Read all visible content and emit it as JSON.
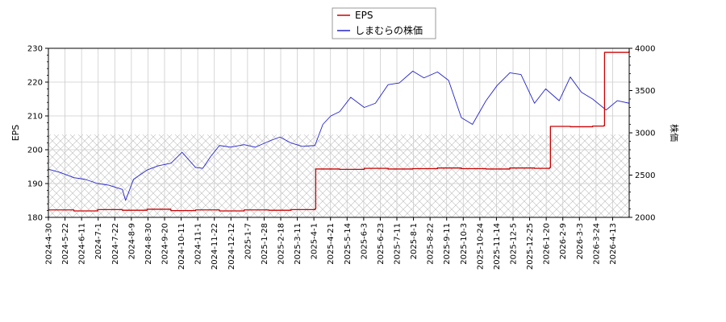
{
  "chart_data": {
    "type": "line",
    "legend": {
      "placement": "top-center",
      "entries": [
        {
          "label": "EPS",
          "color": "#cc0000"
        },
        {
          "label": "しまむらの株価",
          "color": "#2222cc"
        }
      ]
    },
    "y_left": {
      "label": "EPS",
      "lim": [
        180,
        230
      ],
      "ticks": [
        180,
        190,
        200,
        210,
        220,
        230
      ],
      "tick_labels": [
        "180",
        "190",
        "200",
        "210",
        "220",
        "230"
      ]
    },
    "y_right": {
      "label": "株価",
      "lim": [
        2000,
        4000
      ],
      "ticks": [
        2000,
        2500,
        3000,
        3500,
        4000
      ],
      "tick_labels": [
        "2000",
        "2500",
        "3000",
        "3500",
        "4000"
      ]
    },
    "x": {
      "start": "2024-04-30",
      "end": "2026-04-30",
      "tick_labels": [
        "2024-4-30",
        "2024-5-22",
        "2024-6-11",
        "2024-7-1",
        "2024-7-22",
        "2024-8-9",
        "2024-8-30",
        "2024-9-20",
        "2024-10-11",
        "2024-11-1",
        "2024-11-22",
        "2024-12-12",
        "2025-1-7",
        "2025-1-28",
        "2025-2-18",
        "2025-3-11",
        "2025-4-1",
        "2025-4-21",
        "2025-5-14",
        "2025-6-3",
        "2025-6-23",
        "2025-7-11",
        "2025-8-1",
        "2025-8-22",
        "2025-9-11",
        "2025-10-3",
        "2025-10-24",
        "2025-11-14",
        "2025-12-5",
        "2025-12-25",
        "2026-1-20",
        "2026-2-9",
        "2026-3-3",
        "2026-3-24",
        "2026-4-13"
      ]
    },
    "grid": true,
    "hatched_band": {
      "y_axis": "left",
      "from": 180,
      "to": 204.5
    },
    "series": [
      {
        "name": "EPS",
        "axis": "left",
        "color": "#cc0000",
        "x": [
          "2024-04-30",
          "2024-06-01",
          "2024-07-01",
          "2024-08-01",
          "2024-09-01",
          "2024-10-01",
          "2024-11-01",
          "2024-12-01",
          "2025-01-01",
          "2025-02-01",
          "2025-03-01",
          "2025-03-31",
          "2025-04-01",
          "2025-05-01",
          "2025-06-01",
          "2025-07-01",
          "2025-08-01",
          "2025-09-01",
          "2025-10-01",
          "2025-11-01",
          "2025-12-01",
          "2026-01-01",
          "2026-01-20",
          "2026-01-21",
          "2026-02-15",
          "2026-03-15",
          "2026-03-29",
          "2026-03-30",
          "2026-04-30"
        ],
        "values": [
          182.2,
          181.9,
          182.3,
          182.1,
          182.4,
          182.0,
          182.2,
          181.9,
          182.2,
          182.1,
          182.3,
          182.5,
          194.3,
          194.2,
          194.5,
          194.3,
          194.4,
          194.6,
          194.4,
          194.3,
          194.6,
          194.5,
          194.7,
          206.9,
          206.8,
          207.0,
          207.1,
          228.8,
          229.2
        ]
      },
      {
        "name": "しまむらの株価",
        "axis": "right",
        "color": "#2222cc",
        "x": [
          "2024-04-30",
          "2024-05-15",
          "2024-06-01",
          "2024-06-15",
          "2024-07-01",
          "2024-07-15",
          "2024-08-01",
          "2024-08-05",
          "2024-08-15",
          "2024-09-01",
          "2024-09-15",
          "2024-10-01",
          "2024-10-15",
          "2024-11-01",
          "2024-11-10",
          "2024-11-20",
          "2024-12-01",
          "2024-12-15",
          "2025-01-01",
          "2025-01-15",
          "2025-02-01",
          "2025-02-15",
          "2025-03-01",
          "2025-03-15",
          "2025-03-31",
          "2025-04-10",
          "2025-04-20",
          "2025-05-01",
          "2025-05-15",
          "2025-06-01",
          "2025-06-15",
          "2025-07-01",
          "2025-07-15",
          "2025-08-01",
          "2025-08-15",
          "2025-09-01",
          "2025-09-15",
          "2025-10-01",
          "2025-10-15",
          "2025-11-01",
          "2025-11-15",
          "2025-12-01",
          "2025-12-15",
          "2026-01-01",
          "2026-01-15",
          "2026-02-01",
          "2026-02-15",
          "2026-03-01",
          "2026-03-15",
          "2026-04-01",
          "2026-04-15",
          "2026-04-30"
        ],
        "values": [
          2570,
          2530,
          2470,
          2450,
          2400,
          2380,
          2330,
          2200,
          2450,
          2560,
          2610,
          2640,
          2770,
          2590,
          2580,
          2720,
          2850,
          2830,
          2860,
          2830,
          2900,
          2950,
          2880,
          2840,
          2850,
          3100,
          3200,
          3250,
          3420,
          3300,
          3350,
          3570,
          3590,
          3730,
          3650,
          3720,
          3620,
          3180,
          3100,
          3380,
          3560,
          3710,
          3690,
          3350,
          3520,
          3380,
          3660,
          3480,
          3400,
          3270,
          3380,
          3350
        ]
      }
    ]
  }
}
